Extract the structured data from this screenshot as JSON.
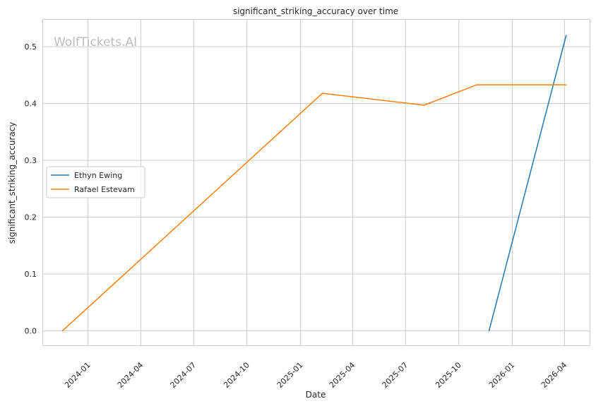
{
  "chart_data": {
    "type": "line",
    "title": "significant_striking_accuracy over time",
    "xlabel": "Date",
    "ylabel": "significant_striking_accuracy",
    "watermark": "WolfTickets.AI",
    "xlim": [
      "2023-10-15",
      "2026-05-15"
    ],
    "ylim": [
      -0.026,
      0.548
    ],
    "x_ticks": [
      "2024-01-01",
      "2024-04-01",
      "2024-07-01",
      "2024-10-01",
      "2025-01-01",
      "2025-04-01",
      "2025-07-01",
      "2025-10-01",
      "2026-01-01",
      "2026-04-01"
    ],
    "x_tick_labels": [
      "2024-01",
      "2024-04",
      "2024-07",
      "2024-10",
      "2025-01",
      "2025-04",
      "2025-07",
      "2025-10",
      "2026-01",
      "2026-04"
    ],
    "y_ticks": [
      0.0,
      0.1,
      0.2,
      0.3,
      0.4,
      0.5
    ],
    "y_tick_labels": [
      "0.0",
      "0.1",
      "0.2",
      "0.3",
      "0.4",
      "0.5"
    ],
    "grid": true,
    "legend_position": "center-left",
    "series": [
      {
        "name": "Ethyn Ewing",
        "color": "#1f77b4",
        "x": [
          "2025-11-22",
          "2026-04-04"
        ],
        "y": [
          0.0,
          0.52
        ]
      },
      {
        "name": "Rafael Estevam",
        "color": "#ff7f0e",
        "x": [
          "2023-11-18",
          "2025-02-08",
          "2025-08-02",
          "2025-11-01",
          "2026-04-04"
        ],
        "y": [
          0.0,
          0.418,
          0.397,
          0.433,
          0.433
        ]
      }
    ]
  }
}
